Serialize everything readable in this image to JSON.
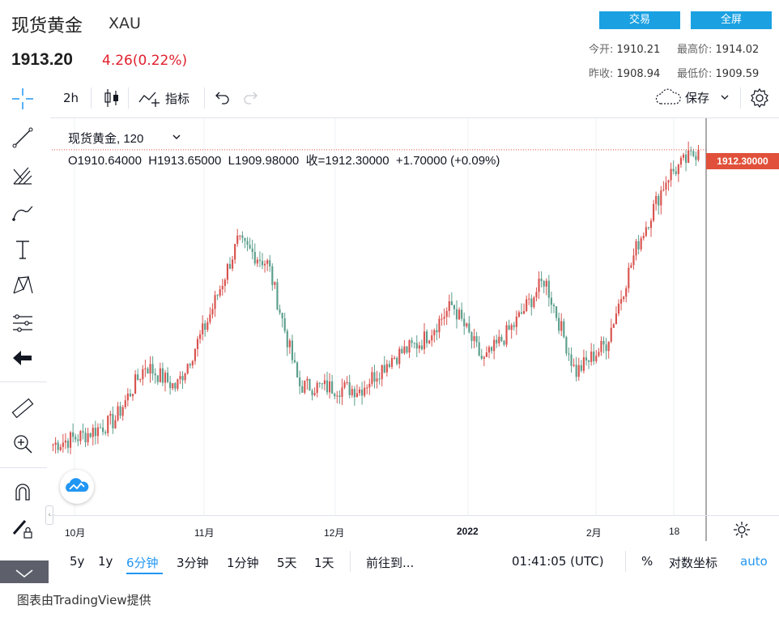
{
  "header": {
    "title": "现货黄金",
    "symbol": "XAU",
    "price": "1913.20",
    "change": "4.26(0.22%)",
    "trade_button": "交易",
    "fullscreen_button": "全屏",
    "stats": {
      "open_label": "今开:",
      "open_value": "1910.21",
      "high_label": "最高价:",
      "high_value": "1914.02",
      "prev_label": "昨收:",
      "prev_value": "1908.94",
      "low_label": "最低价:",
      "low_value": "1909.59"
    }
  },
  "toolbar": {
    "interval": "2h",
    "indicators": "指标",
    "save": "保存"
  },
  "legend": {
    "name": "现货黄金, 120",
    "ohlc": "O1910.64000  H1913.65000  L1909.98000  收=1912.30000  +1.70000 (+0.09%)"
  },
  "last_price_label": "1912.30000",
  "time_axis": [
    "10月",
    "11月",
    "12月",
    "2022",
    "2月",
    "18"
  ],
  "bottom_bar": {
    "ranges": [
      "5y",
      "1y",
      "6分钟",
      "3分钟",
      "1分钟",
      "5天",
      "1天"
    ],
    "active_range": "6分钟",
    "goto": "前往到...",
    "clock": "01:41:05 (UTC)",
    "percent": "%",
    "log": "对数坐标",
    "auto": "auto"
  },
  "footer": "图表由TradingView提供",
  "colors": {
    "up": "#d9534f",
    "down": "#5b9e8c",
    "accent": "#1ba1e2",
    "active": "#2196f3",
    "price_tag": "#e0503a"
  },
  "chart_data": {
    "type": "candlestick",
    "x": [
      "2021-09-27",
      "2021-10-04",
      "2021-10-11",
      "2021-10-18",
      "2021-10-25",
      "2021-11-01",
      "2021-11-08",
      "2021-11-15",
      "2021-11-22",
      "2021-11-29",
      "2021-12-06",
      "2021-12-13",
      "2021-12-20",
      "2021-12-27",
      "2022-01-03",
      "2022-01-10",
      "2022-01-17",
      "2022-01-24",
      "2022-01-31",
      "2022-02-07",
      "2022-02-14",
      "2022-02-21"
    ],
    "close": [
      1752,
      1757,
      1765,
      1795,
      1783,
      1818,
      1862,
      1850,
      1784,
      1783,
      1782,
      1799,
      1808,
      1828,
      1797,
      1817,
      1842,
      1791,
      1807,
      1860,
      1898,
      1912
    ],
    "last": 1912.3
  }
}
